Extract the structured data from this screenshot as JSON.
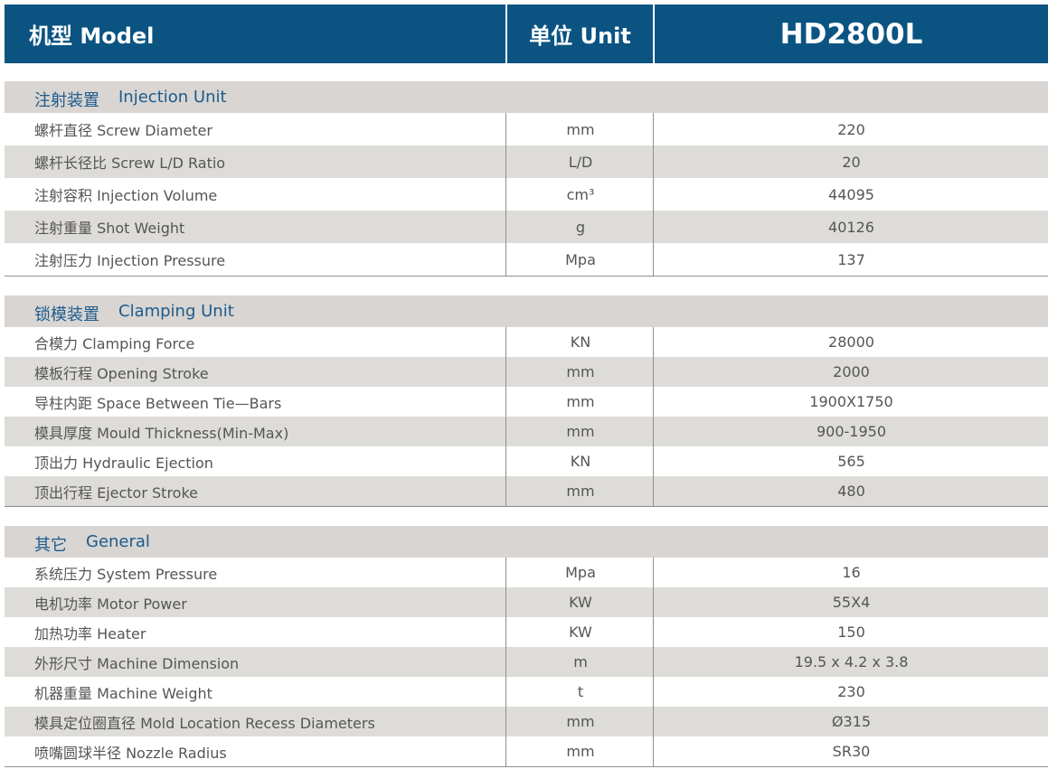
{
  "header": {
    "model": "机型 Model",
    "unit": "单位 Unit",
    "value": "HD2800L"
  },
  "sections": [
    {
      "title_cn": "注射装置",
      "title_en": "Injection Unit",
      "rows": [
        [
          "螺杆直径 Screw Diameter",
          "mm",
          "220"
        ],
        [
          "螺杆长径比 Screw L/D Ratio",
          "L/D",
          "20"
        ],
        [
          "注射容积 Injection Volume",
          "cm³",
          "44095"
        ],
        [
          "注射重量 Shot Weight",
          "g",
          "40126"
        ],
        [
          "注射压力 Injection Pressure",
          "Mpa",
          "137"
        ]
      ]
    },
    {
      "title_cn": "锁模装置",
      "title_en": "Clamping Unit",
      "rows": [
        [
          "合模力 Clamping Force",
          "KN",
          "28000"
        ],
        [
          "模板行程 Opening Stroke",
          "mm",
          "2000"
        ],
        [
          "导柱内距 Space Between Tie—Bars",
          "mm",
          "1900X1750"
        ],
        [
          "模具厚度 Mould Thickness(Min-Max)",
          "mm",
          "900-1950"
        ],
        [
          "顶出力 Hydraulic Ejection",
          "KN",
          "565"
        ],
        [
          "顶出行程 Ejector Stroke",
          "mm",
          "480"
        ]
      ]
    },
    {
      "title_cn": "其它",
      "title_en": "General",
      "rows": [
        [
          "系统压力 System Pressure",
          "Mpa",
          "16"
        ],
        [
          "电机功率 Motor Power",
          "KW",
          "55X4"
        ],
        [
          "加热功率 Heater",
          "KW",
          "150"
        ],
        [
          "外形尺寸 Machine Dimension",
          "m",
          "19.5 x 4.2 x 3.8"
        ],
        [
          "机器重量 Machine Weight",
          "t",
          "230"
        ],
        [
          "模具定位圈直径 Mold Location Recess Diameters",
          "mm",
          "Ø315"
        ],
        [
          "喷嘴圆球半径 Nozzle Radius",
          "mm",
          "SR30"
        ]
      ]
    }
  ]
}
